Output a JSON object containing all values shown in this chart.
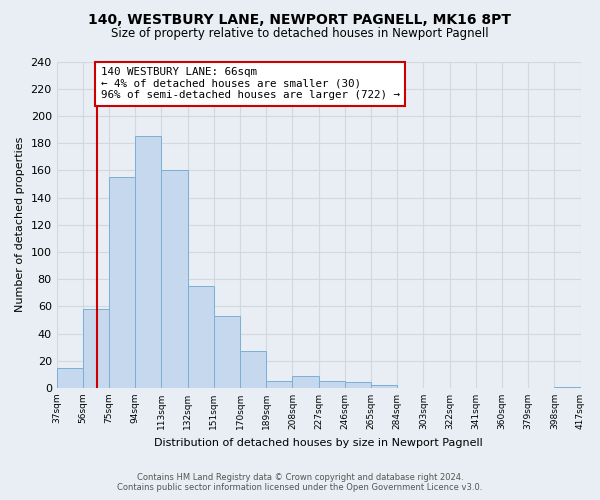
{
  "title": "140, WESTBURY LANE, NEWPORT PAGNELL, MK16 8PT",
  "subtitle": "Size of property relative to detached houses in Newport Pagnell",
  "xlabel": "Distribution of detached houses by size in Newport Pagnell",
  "ylabel": "Number of detached properties",
  "bar_edges": [
    37,
    56,
    75,
    94,
    113,
    132,
    151,
    170,
    189,
    208,
    227,
    246,
    265,
    284,
    303,
    322,
    341,
    360,
    379,
    398,
    417
  ],
  "bar_heights": [
    15,
    58,
    155,
    185,
    160,
    75,
    53,
    27,
    5,
    9,
    5,
    4,
    2,
    0,
    0,
    0,
    0,
    0,
    0,
    1
  ],
  "bar_color": "#c5d8ed",
  "bar_edge_color": "#7aafd4",
  "property_line_x": 66,
  "property_line_color": "#cc0000",
  "annotation_line1": "140 WESTBURY LANE: 66sqm",
  "annotation_line2": "← 4% of detached houses are smaller (30)",
  "annotation_line3": "96% of semi-detached houses are larger (722) →",
  "annotation_box_color": "#ffffff",
  "annotation_box_edge_color": "#cc0000",
  "ylim": [
    0,
    240
  ],
  "yticks": [
    0,
    20,
    40,
    60,
    80,
    100,
    120,
    140,
    160,
    180,
    200,
    220,
    240
  ],
  "tick_labels": [
    "37sqm",
    "56sqm",
    "75sqm",
    "94sqm",
    "113sqm",
    "132sqm",
    "151sqm",
    "170sqm",
    "189sqm",
    "208sqm",
    "227sqm",
    "246sqm",
    "265sqm",
    "284sqm",
    "303sqm",
    "322sqm",
    "341sqm",
    "360sqm",
    "379sqm",
    "398sqm",
    "417sqm"
  ],
  "footer_line1": "Contains HM Land Registry data © Crown copyright and database right 2024.",
  "footer_line2": "Contains public sector information licensed under the Open Government Licence v3.0.",
  "grid_color": "#d0d8e0",
  "background_color": "#e8eef4"
}
